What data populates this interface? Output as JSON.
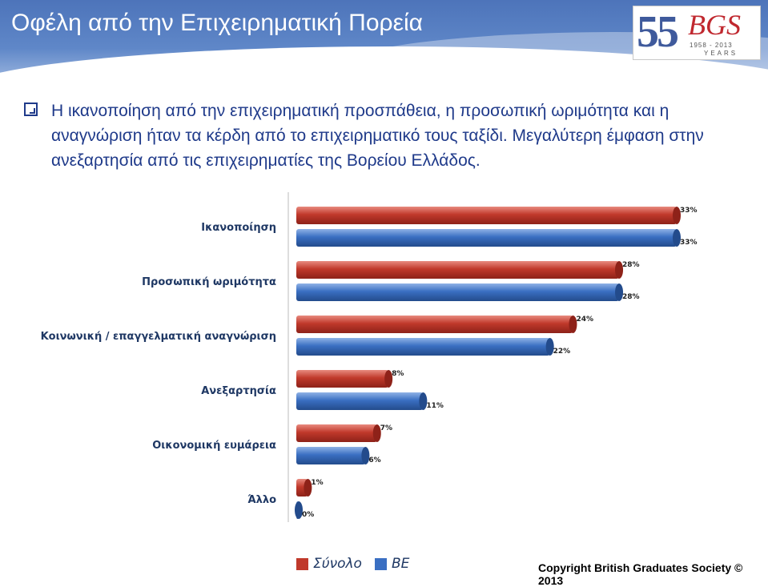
{
  "title": "Οφέλη από την Επιχειρηματική Πορεία",
  "logo": {
    "number": "55",
    "letters": "BGS",
    "years": "1958 - 2013",
    "years_word": "YEARS"
  },
  "bullet": "Η ικανοποίηση από την επιχειρηματική προσπάθεια, η προσωπική ωριμότητα και η αναγνώριση ήταν τα κέρδη από το επιχειρηματικό τους ταξίδι. Μεγαλύτερη έμφαση στην ανεξαρτησία από τις επιχειρηματίες της Βορείου Ελλάδος.",
  "copyright": "Copyright British Graduates Society © 2013",
  "colors": {
    "red": "#c0392b",
    "blue": "#3a6fc2",
    "text": "#1f3a8a"
  },
  "chart_data": {
    "type": "bar",
    "orientation": "horizontal",
    "categories": [
      "Ικανοποίηση",
      "Προσωπική ωριμότητα",
      "Κοινωνική / επαγγελματική αναγνώριση",
      "Ανεξαρτησία",
      "Οικονομική ευμάρεια",
      "Άλλο"
    ],
    "series": [
      {
        "name": "Σύνολο",
        "color": "#c0392b",
        "values": [
          33,
          28,
          24,
          8,
          7,
          1
        ]
      },
      {
        "name": "ΒΕ",
        "color": "#3a6fc2",
        "values": [
          33,
          28,
          22,
          11,
          6,
          0
        ]
      }
    ],
    "value_suffix": "%",
    "xlim": [
      0,
      33
    ],
    "legend": "bottom",
    "grid": false
  }
}
